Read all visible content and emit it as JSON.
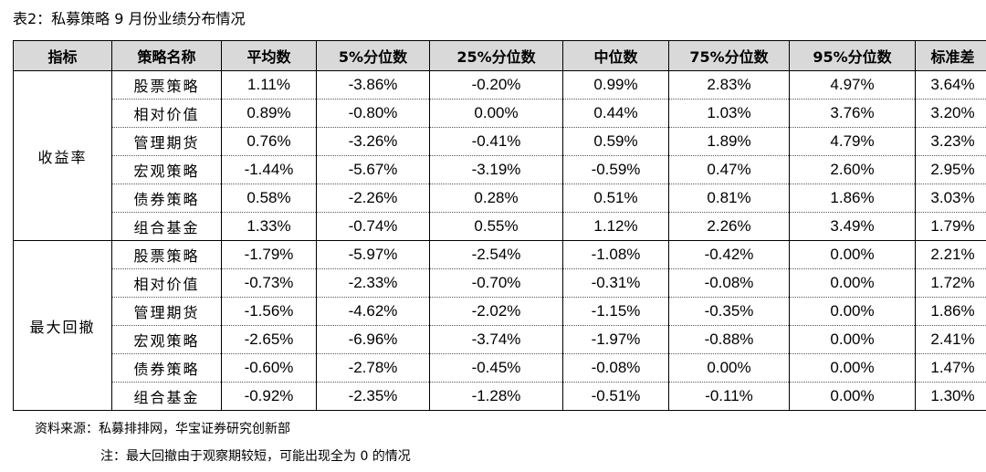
{
  "caption": "表2：私募策略 9 月份业绩分布情况",
  "headers": [
    "指标",
    "策略名称",
    "平均数",
    "5%分位数",
    "25%分位数",
    "中位数",
    "75%分位数",
    "95%分位数",
    "标准差"
  ],
  "groups": [
    {
      "label": "收益率",
      "rows": [
        {
          "name": "股票策略",
          "values": [
            "1.11%",
            "-3.86%",
            "-0.20%",
            "0.99%",
            "2.83%",
            "4.97%",
            "3.64%"
          ]
        },
        {
          "name": "相对价值",
          "values": [
            "0.89%",
            "-0.80%",
            "0.00%",
            "0.44%",
            "1.03%",
            "3.76%",
            "3.20%"
          ]
        },
        {
          "name": "管理期货",
          "values": [
            "0.76%",
            "-3.26%",
            "-0.41%",
            "0.59%",
            "1.89%",
            "4.79%",
            "3.23%"
          ]
        },
        {
          "name": "宏观策略",
          "values": [
            "-1.44%",
            "-5.67%",
            "-3.19%",
            "-0.59%",
            "0.47%",
            "2.60%",
            "2.95%"
          ]
        },
        {
          "name": "债券策略",
          "values": [
            "0.58%",
            "-2.26%",
            "0.28%",
            "0.51%",
            "0.81%",
            "1.86%",
            "3.03%"
          ]
        },
        {
          "name": "组合基金",
          "values": [
            "1.33%",
            "-0.74%",
            "0.55%",
            "1.12%",
            "2.26%",
            "3.49%",
            "1.79%"
          ]
        }
      ]
    },
    {
      "label": "最大回撤",
      "rows": [
        {
          "name": "股票策略",
          "values": [
            "-1.79%",
            "-5.97%",
            "-2.54%",
            "-1.08%",
            "-0.42%",
            "0.00%",
            "2.21%"
          ]
        },
        {
          "name": "相对价值",
          "values": [
            "-0.73%",
            "-2.33%",
            "-0.70%",
            "-0.31%",
            "-0.08%",
            "0.00%",
            "1.72%"
          ]
        },
        {
          "name": "管理期货",
          "values": [
            "-1.56%",
            "-4.62%",
            "-2.02%",
            "-1.15%",
            "-0.35%",
            "0.00%",
            "1.86%"
          ]
        },
        {
          "name": "宏观策略",
          "values": [
            "-2.65%",
            "-6.96%",
            "-3.74%",
            "-1.97%",
            "-0.88%",
            "0.00%",
            "2.41%"
          ]
        },
        {
          "name": "债券策略",
          "values": [
            "-0.60%",
            "-2.78%",
            "-0.45%",
            "-0.08%",
            "0.00%",
            "0.00%",
            "1.47%"
          ]
        },
        {
          "name": "组合基金",
          "values": [
            "-0.92%",
            "-2.35%",
            "-1.28%",
            "-0.51%",
            "-0.11%",
            "0.00%",
            "1.30%"
          ]
        }
      ]
    }
  ],
  "source": "资料来源：私募排排网，华宝证券研究创新部",
  "note": "注：最大回撤由于观察期较短，可能出现全为 0 的情况"
}
